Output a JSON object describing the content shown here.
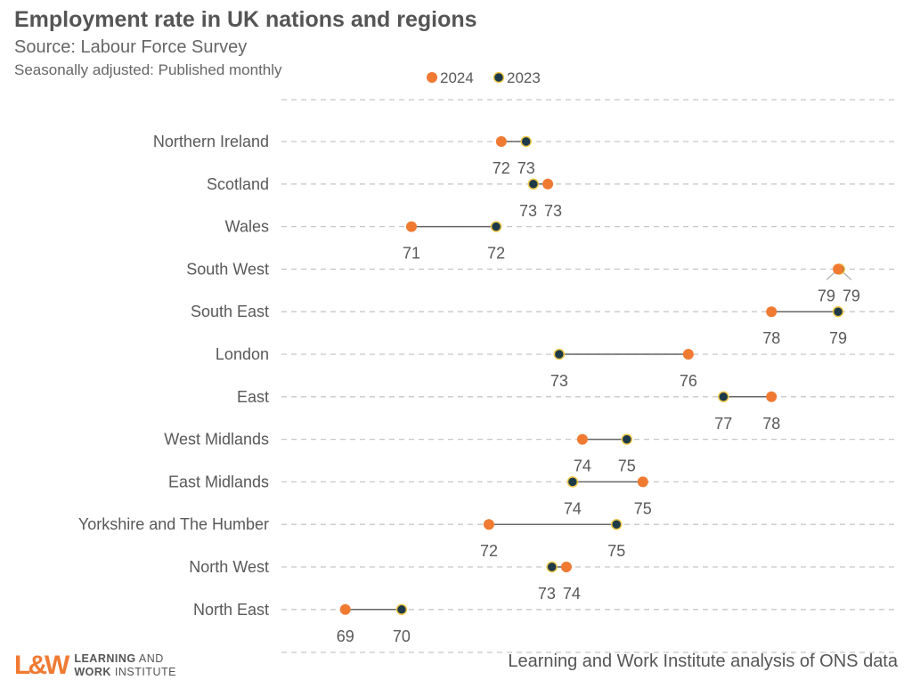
{
  "header": {
    "title": "Employment rate in UK nations and regions",
    "source_line": "Source: Labour Force Survey",
    "note_line": "Seasonally adjusted: Published monthly"
  },
  "footer": {
    "credit": "Learning and Work Institute analysis of ONS data",
    "logo_mark": "L&W",
    "logo_line1_bold": "LEARNING",
    "logo_line1": " AND",
    "logo_line2_bold": "WORK",
    "logo_line2": " INSTITUTE"
  },
  "chart_data": {
    "type": "dumbbell",
    "title": "Employment rate in UK nations and regions",
    "xlim": [
      68,
      80
    ],
    "grid": "horizontal dashed",
    "legend_placement": "top-center",
    "colors": {
      "2024": "#F07A32",
      "2023": "#1E3A48",
      "2023_outline": "#F2C94C",
      "connector": "#666666"
    },
    "series": [
      {
        "name": "2024"
      },
      {
        "name": "2023"
      }
    ],
    "categories": [
      "Northern Ireland",
      "Scotland",
      "Wales",
      "South West",
      "South East",
      "London",
      "East",
      "West Midlands",
      "East Midlands",
      "Yorkshire and The Humber",
      "North West",
      "North East"
    ],
    "values_2024": [
      72.36,
      73.26,
      70.62,
      78.88,
      77.59,
      75.98,
      77.59,
      73.93,
      75.1,
      72.12,
      73.62,
      69.34
    ],
    "values_2023": [
      72.84,
      72.98,
      72.26,
      78.91,
      78.88,
      73.48,
      76.66,
      74.79,
      73.74,
      74.59,
      73.34,
      70.43
    ],
    "labels_2024": [
      "72",
      "73",
      "71",
      "79",
      "78",
      "76",
      "78",
      "74",
      "75",
      "72",
      "74",
      "69"
    ],
    "labels_2023": [
      "73",
      "73",
      "72",
      "79",
      "79",
      "73",
      "77",
      "75",
      "74",
      "75",
      "73",
      "70"
    ]
  }
}
